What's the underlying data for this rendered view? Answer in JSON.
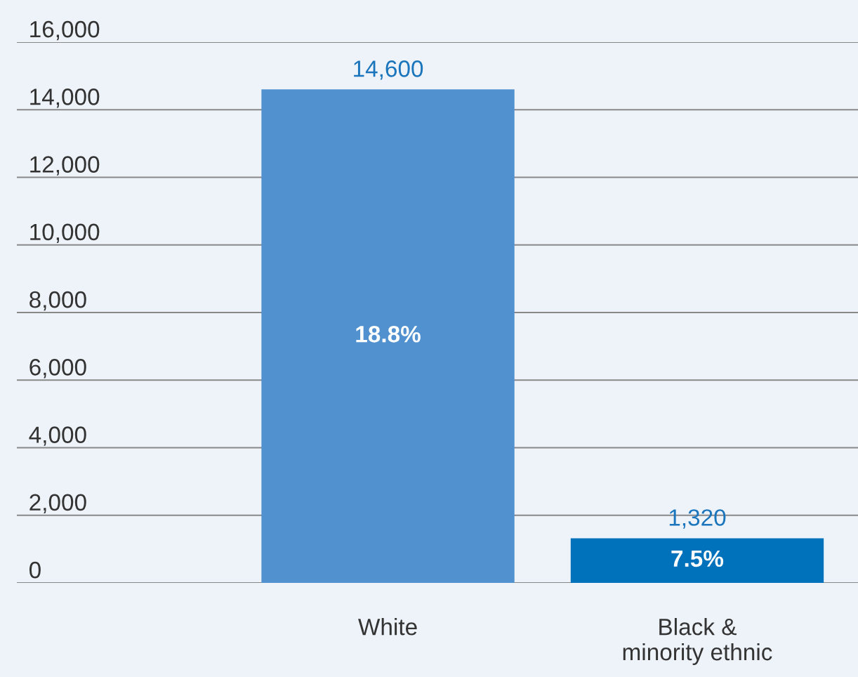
{
  "chart_data": {
    "type": "bar",
    "categories": [
      "White",
      "Black &\nminority ethnic"
    ],
    "values": [
      14600,
      1320
    ],
    "colors": [
      "#5191cf",
      "#0071bb"
    ],
    "value_labels": [
      "14,600",
      "1,320"
    ],
    "annotations": [
      "18.8%",
      "7.5%"
    ],
    "ylim": [
      0,
      16000
    ],
    "yticks": [
      {
        "value": 0,
        "label": "0"
      },
      {
        "value": 2000,
        "label": "2,000"
      },
      {
        "value": 4000,
        "label": "4,000"
      },
      {
        "value": 6000,
        "label": "6,000"
      },
      {
        "value": 8000,
        "label": "8,000"
      },
      {
        "value": 10000,
        "label": "10,000"
      },
      {
        "value": 12000,
        "label": "12,000"
      },
      {
        "value": 14000,
        "label": "14,000"
      },
      {
        "value": 16000,
        "label": "16,000"
      }
    ],
    "grid": "y"
  }
}
